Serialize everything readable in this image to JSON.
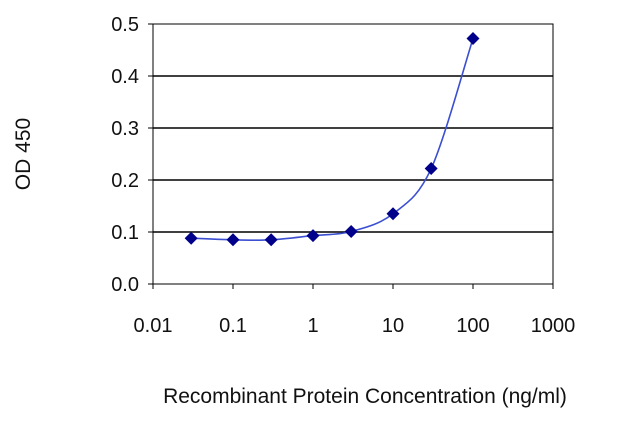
{
  "chart_data": {
    "type": "scatter",
    "title": "",
    "xlabel": "Recombinant Protein Concentration (ng/ml)",
    "ylabel": "OD 450",
    "x_scale": "log",
    "xlim": [
      0.01,
      1000
    ],
    "ylim": [
      0,
      0.5
    ],
    "x_ticks": [
      0.01,
      0.1,
      1,
      10,
      100,
      1000
    ],
    "x_tick_labels": [
      "0.01",
      "0.1",
      "1",
      "10",
      "100",
      "1000"
    ],
    "y_ticks": [
      0,
      0.1,
      0.2,
      0.3,
      0.4,
      0.5
    ],
    "y_tick_labels": [
      "0.0",
      "0.1",
      "0.2",
      "0.3",
      "0.4",
      "0.5"
    ],
    "grid": "horizontal",
    "legend": "none",
    "series": [
      {
        "marker": "diamond",
        "fit_line": true,
        "color": "#00008b",
        "points": [
          {
            "x": 0.03,
            "y": 0.088
          },
          {
            "x": 0.1,
            "y": 0.085
          },
          {
            "x": 0.3,
            "y": 0.085
          },
          {
            "x": 1,
            "y": 0.093
          },
          {
            "x": 3,
            "y": 0.101
          },
          {
            "x": 10,
            "y": 0.135
          },
          {
            "x": 30,
            "y": 0.222
          },
          {
            "x": 100,
            "y": 0.472
          }
        ]
      }
    ]
  }
}
